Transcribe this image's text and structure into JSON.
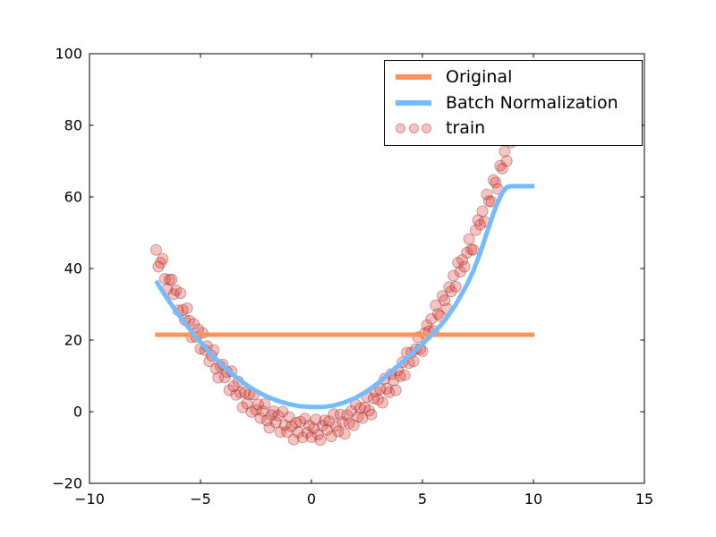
{
  "chart_data": {
    "type": "mixed",
    "title": "",
    "xlabel": "",
    "ylabel": "",
    "xlim": [
      -10,
      15
    ],
    "ylim": [
      -20,
      100
    ],
    "grid": false,
    "xtick_values": [
      -10,
      -5,
      0,
      5,
      10,
      15
    ],
    "xtick_labels": [
      "−10",
      "−5",
      "0",
      "5",
      "10",
      "15"
    ],
    "ytick_values": [
      -20,
      0,
      20,
      40,
      60,
      80,
      100
    ],
    "ytick_labels": [
      "−20",
      "0",
      "20",
      "40",
      "60",
      "80",
      "100"
    ],
    "legend": {
      "position": "upper right",
      "entries": [
        {
          "label": "Original",
          "marker": "line",
          "color": "#FF9359"
        },
        {
          "label": "Batch Normalization",
          "marker": "line",
          "color": "#74BCFF"
        },
        {
          "label": "train",
          "marker": "circles",
          "fill": "#F8C3C0",
          "edge": "#C9908E"
        }
      ]
    },
    "series": [
      {
        "name": "Original",
        "type": "line",
        "color": "#FF9359",
        "linewidth": 5,
        "points": [
          [
            -7.05,
            21.5
          ],
          [
            10.05,
            21.5
          ]
        ]
      },
      {
        "name": "Batch Normalization",
        "type": "line",
        "color": "#74BCFF",
        "linewidth": 5,
        "points": [
          [
            -7.0,
            36.5
          ],
          [
            -6.5,
            31.6
          ],
          [
            -6.0,
            27.2
          ],
          [
            -5.5,
            23.2
          ],
          [
            -5.0,
            19.5
          ],
          [
            -4.5,
            16.0
          ],
          [
            -4.0,
            12.9
          ],
          [
            -3.5,
            10.2
          ],
          [
            -3.0,
            7.8
          ],
          [
            -2.5,
            5.8
          ],
          [
            -2.0,
            4.2
          ],
          [
            -1.5,
            3.0
          ],
          [
            -1.0,
            2.1
          ],
          [
            -0.5,
            1.5
          ],
          [
            0.0,
            1.3
          ],
          [
            0.5,
            1.3
          ],
          [
            1.0,
            1.7
          ],
          [
            1.5,
            2.6
          ],
          [
            2.0,
            3.9
          ],
          [
            2.5,
            5.7
          ],
          [
            3.0,
            8.0
          ],
          [
            3.5,
            10.6
          ],
          [
            4.0,
            13.3
          ],
          [
            4.5,
            16.1
          ],
          [
            5.0,
            18.9
          ],
          [
            5.5,
            21.9
          ],
          [
            6.0,
            25.4
          ],
          [
            6.5,
            29.9
          ],
          [
            7.0,
            35.4
          ],
          [
            7.3,
            39.4
          ],
          [
            7.6,
            44.3
          ],
          [
            7.9,
            49.9
          ],
          [
            8.2,
            55.4
          ],
          [
            8.4,
            58.6
          ],
          [
            8.6,
            61.2
          ],
          [
            8.8,
            62.7
          ],
          [
            9.0,
            63.0
          ],
          [
            10.05,
            63.0
          ]
        ]
      },
      {
        "name": "train",
        "type": "scatter",
        "marker_radius": 6,
        "fill": "rgba(232,55,50,0.30)",
        "edge": "rgba(110,45,45,0.40)",
        "points": [
          [
            -7,
            45.2
          ],
          [
            -6.9,
            40.5
          ],
          [
            -6.8,
            41.6
          ],
          [
            -6.7,
            42.7
          ],
          [
            -6.6,
            37.1
          ],
          [
            -6.5,
            34.2
          ],
          [
            -6.4,
            36.9
          ],
          [
            -6.3,
            36.9
          ],
          [
            -6.2,
            32.8
          ],
          [
            -6.1,
            33.9
          ],
          [
            -6,
            28.3
          ],
          [
            -5.9,
            33.1
          ],
          [
            -5.8,
            28.4
          ],
          [
            -5.7,
            25.6
          ],
          [
            -5.6,
            28.9
          ],
          [
            -5.5,
            25.4
          ],
          [
            -5.4,
            20.8
          ],
          [
            -5.3,
            24.5
          ],
          [
            -5.2,
            20.9
          ],
          [
            -5.1,
            23
          ],
          [
            -5,
            17.6
          ],
          [
            -4.9,
            22
          ],
          [
            -4.8,
            17.2
          ],
          [
            -4.7,
            18.3
          ],
          [
            -4.6,
            14.1
          ],
          [
            -4.5,
            15.7
          ],
          [
            -4.4,
            17.2
          ],
          [
            -4.3,
            12
          ],
          [
            -4.2,
            9.5
          ],
          [
            -4.1,
            12.7
          ],
          [
            -4,
            13.2
          ],
          [
            -3.9,
            9.6
          ],
          [
            -3.8,
            11.1
          ],
          [
            -3.7,
            6
          ],
          [
            -3.6,
            11.3
          ],
          [
            -3.5,
            7.1
          ],
          [
            -3.4,
            4.7
          ],
          [
            -3.3,
            8.4
          ],
          [
            -3.2,
            5.3
          ],
          [
            -3.1,
            1.2
          ],
          [
            -3,
            5.4
          ],
          [
            -2.9,
            2.3
          ],
          [
            -2.8,
            4.8
          ],
          [
            -2.7,
            -0.1
          ],
          [
            -2.6,
            4.8
          ],
          [
            -2.5,
            0.5
          ],
          [
            -2.4,
            2
          ],
          [
            -2.3,
            -1.8
          ],
          [
            -2.2,
            0.2
          ],
          [
            -2.1,
            2.2
          ],
          [
            -2,
            -2.5
          ],
          [
            -1.9,
            -4.5
          ],
          [
            -1.8,
            -0.9
          ],
          [
            -1.7,
            0.1
          ],
          [
            -1.6,
            -3
          ],
          [
            -1.5,
            -1.1
          ],
          [
            -1.4,
            -5.7
          ],
          [
            -1.3,
            0
          ],
          [
            -1.2,
            -3.8
          ],
          [
            -1.1,
            -5.7
          ],
          [
            -1,
            -1.5
          ],
          [
            -0.9,
            -4.1
          ],
          [
            -0.8,
            -7.8
          ],
          [
            -0.7,
            -3.1
          ],
          [
            -0.6,
            -5.7
          ],
          [
            -0.5,
            -2.8
          ],
          [
            -0.4,
            -7.2
          ],
          [
            -0.3,
            -1.9
          ],
          [
            -0.2,
            -5.8
          ],
          [
            -0.1,
            -3.8
          ],
          [
            0,
            -7.1
          ],
          [
            0.1,
            -4.6
          ],
          [
            0.2,
            -2.2
          ],
          [
            0.3,
            -6.4
          ],
          [
            0.4,
            -7.9
          ],
          [
            0.5,
            -3.9
          ],
          [
            0.6,
            -2.4
          ],
          [
            0.7,
            -5.1
          ],
          [
            0.8,
            -2.7
          ],
          [
            0.9,
            -6.9
          ],
          [
            1,
            -0.7
          ],
          [
            1.1,
            -4
          ],
          [
            1.2,
            -5.5
          ],
          [
            1.3,
            -0.8
          ],
          [
            1.4,
            -2.9
          ],
          [
            1.5,
            -6.2
          ],
          [
            1.6,
            -1
          ],
          [
            1.7,
            -3.2
          ],
          [
            1.8,
            0.2
          ],
          [
            1.9,
            -3.8
          ],
          [
            2,
            2
          ],
          [
            2.1,
            -1.4
          ],
          [
            2.2,
            1
          ],
          [
            2.3,
            -1.8
          ],
          [
            2.4,
            1.2
          ],
          [
            2.5,
            4.1
          ],
          [
            2.6,
            0.3
          ],
          [
            2.7,
            -0.8
          ],
          [
            2.8,
            3.7
          ],
          [
            2.9,
            5.6
          ],
          [
            3,
            3.4
          ],
          [
            3.1,
            6.3
          ],
          [
            3.2,
            2.5
          ],
          [
            3.3,
            9.2
          ],
          [
            3.4,
            6.4
          ],
          [
            3.5,
            5.4
          ],
          [
            3.6,
            10.5
          ],
          [
            3.7,
            8.8
          ],
          [
            3.8,
            6
          ],
          [
            3.9,
            11.6
          ],
          [
            4,
            9.9
          ],
          [
            4.1,
            13.8
          ],
          [
            4.2,
            10.2
          ],
          [
            4.3,
            16.5
          ],
          [
            4.4,
            13.6
          ],
          [
            4.5,
            16.5
          ],
          [
            4.6,
            14.1
          ],
          [
            4.7,
            17.5
          ],
          [
            4.8,
            20.8
          ],
          [
            4.9,
            17.5
          ],
          [
            5,
            16.9
          ],
          [
            5.1,
            21.9
          ],
          [
            5.2,
            24.2
          ],
          [
            5.3,
            22.5
          ],
          [
            5.4,
            25.9
          ],
          [
            5.5,
            22.6
          ],
          [
            5.6,
            29.7
          ],
          [
            5.7,
            27.3
          ],
          [
            5.8,
            26.7
          ],
          [
            5.9,
            32.3
          ],
          [
            6,
            31.1
          ],
          [
            6.1,
            28.8
          ],
          [
            6.2,
            34.8
          ],
          [
            6.3,
            33.6
          ],
          [
            6.4,
            38
          ],
          [
            6.5,
            34.9
          ],
          [
            6.6,
            41.6
          ],
          [
            6.7,
            39.1
          ],
          [
            6.8,
            42.4
          ],
          [
            6.9,
            40.5
          ],
          [
            7,
            44.4
          ],
          [
            7.1,
            48.2
          ],
          [
            7.2,
            45.3
          ],
          [
            7.3,
            45.2
          ],
          [
            7.4,
            50.7
          ],
          [
            7.5,
            53.5
          ],
          [
            7.6,
            52.2
          ],
          [
            7.7,
            56
          ],
          [
            7.8,
            53.1
          ],
          [
            7.9,
            60.7
          ],
          [
            8,
            58.8
          ],
          [
            8.1,
            58.7
          ],
          [
            8.2,
            64.7
          ],
          [
            8.3,
            64
          ],
          [
            8.4,
            62.2
          ],
          [
            8.5,
            68.7
          ],
          [
            8.6,
            67.9
          ],
          [
            8.7,
            72.7
          ],
          [
            8.8,
            70
          ],
          [
            8.9,
            77.2
          ],
          [
            9,
            75.2
          ],
          [
            9.1,
            79
          ],
          [
            9.2,
            77.5
          ],
          [
            9.3,
            81.9
          ],
          [
            9.4,
            86.2
          ],
          [
            9.5,
            83.8
          ],
          [
            9.6,
            84.1
          ],
          [
            9.7,
            90
          ],
          [
            9.8,
            93.2
          ],
          [
            9.9,
            92.4
          ],
          [
            10,
            96.7
          ]
        ]
      }
    ],
    "axes_style": {
      "spine_color": "#000000",
      "tick_color": "#000000",
      "tick_direction": "in",
      "tick_label_fontsize_px": 16
    }
  }
}
